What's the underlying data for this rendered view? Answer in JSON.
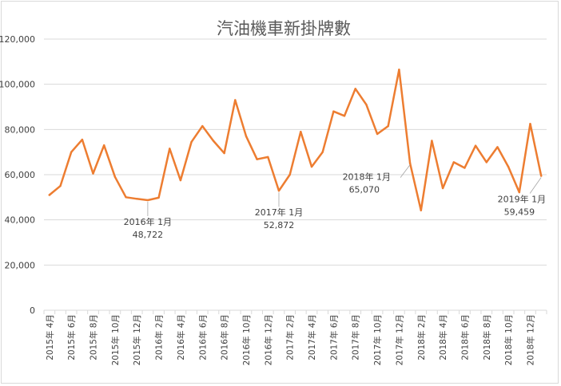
{
  "chart_data": {
    "type": "line",
    "title": "汽油機車新掛牌數",
    "xlabel": "",
    "ylabel": "",
    "ylim": [
      0,
      120000
    ],
    "yticks": [
      0,
      20000,
      40000,
      60000,
      80000,
      100000,
      120000
    ],
    "ytick_labels": [
      "0",
      "20,000",
      "40,000",
      "60,000",
      "80,000",
      "100,000",
      "120,000"
    ],
    "grid": true,
    "legend": "none",
    "line_color": "#ed7d31",
    "grid_color": "#d9d9d9",
    "categories": [
      "2015年 4月",
      "2015年 5月",
      "2015年 6月",
      "2015年 7月",
      "2015年 8月",
      "2015年 9月",
      "2015年 10月",
      "2015年 11月",
      "2015年 12月",
      "2016年 1月",
      "2016年 2月",
      "2016年 3月",
      "2016年 4月",
      "2016年 5月",
      "2016年 6月",
      "2016年 7月",
      "2016年 8月",
      "2016年 9月",
      "2016年 10月",
      "2016年 11月",
      "2016年 12月",
      "2017年 1月",
      "2017年 2月",
      "2017年 3月",
      "2017年 4月",
      "2017年 5月",
      "2017年 6月",
      "2017年 7月",
      "2017年 8月",
      "2017年 9月",
      "2017年 10月",
      "2017年 11月",
      "2017年 12月",
      "2018年 1月",
      "2018年 2月",
      "2018年 3月",
      "2018年 4月",
      "2018年 5月",
      "2018年 6月",
      "2018年 7月",
      "2018年 8月",
      "2018年 9月",
      "2018年 10月",
      "2018年 11月",
      "2018年 12月",
      "2019年 1月"
    ],
    "xtick_labels": [
      {
        "index": 0,
        "label": "2015年 4月"
      },
      {
        "index": 2,
        "label": "2015年 6月"
      },
      {
        "index": 4,
        "label": "2015年 8月"
      },
      {
        "index": 6,
        "label": "2015年 10月"
      },
      {
        "index": 8,
        "label": "2015年 12月"
      },
      {
        "index": 10,
        "label": "2016年 2月"
      },
      {
        "index": 12,
        "label": "2016年 4月"
      },
      {
        "index": 14,
        "label": "2016年 6月"
      },
      {
        "index": 16,
        "label": "2016年 8月"
      },
      {
        "index": 18,
        "label": "2016年 10月"
      },
      {
        "index": 20,
        "label": "2016年 12月"
      },
      {
        "index": 22,
        "label": "2017年 2月"
      },
      {
        "index": 24,
        "label": "2017年 4月"
      },
      {
        "index": 26,
        "label": "2017年 6月"
      },
      {
        "index": 28,
        "label": "2017年 8月"
      },
      {
        "index": 30,
        "label": "2017年 10月"
      },
      {
        "index": 32,
        "label": "2017年 12月"
      },
      {
        "index": 34,
        "label": "2018年 2月"
      },
      {
        "index": 36,
        "label": "2018年 4月"
      },
      {
        "index": 38,
        "label": "2018年 6月"
      },
      {
        "index": 40,
        "label": "2018年 8月"
      },
      {
        "index": 42,
        "label": "2018年 10月"
      },
      {
        "index": 44,
        "label": "2018年 12月"
      }
    ],
    "series": [
      {
        "values": [
          51000,
          55000,
          70000,
          75500,
          60500,
          73000,
          59000,
          50000,
          49300,
          48722,
          49800,
          71500,
          57500,
          74500,
          81500,
          75000,
          69500,
          93000,
          77000,
          66800,
          67800,
          52872,
          60000,
          79000,
          63500,
          70000,
          88000,
          86000,
          98000,
          91000,
          78000,
          81500,
          106500,
          65070,
          44200,
          75000,
          54000,
          65500,
          63000,
          72800,
          65500,
          72200,
          63500,
          52200,
          82500,
          59459
        ]
      }
    ],
    "annotations": [
      {
        "index": 9,
        "line1": "2016年 1月",
        "line2": "48,722"
      },
      {
        "index": 21,
        "line1": "2017年 1月",
        "line2": "52,872"
      },
      {
        "index": 33,
        "line1": "2018年 1月",
        "line2": "65,070"
      },
      {
        "index": 45,
        "line1": "2019年 1月",
        "line2": "59,459"
      }
    ]
  }
}
